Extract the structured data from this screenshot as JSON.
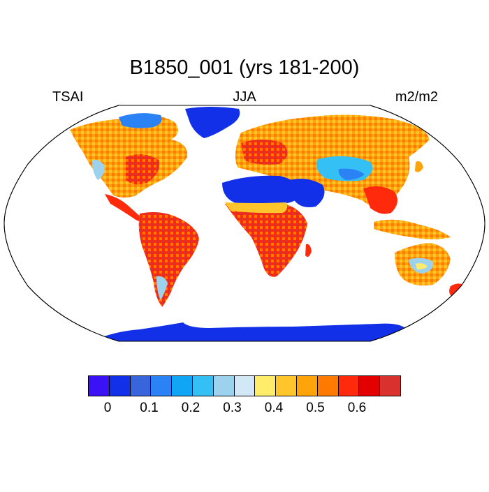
{
  "title": "B1850_001 (yrs 181-200)",
  "left_label": "TSAI",
  "center_label": "JJA",
  "right_label": "m2/m2",
  "colors": {
    "ocean": "#ffffff",
    "frame": "#000000"
  },
  "colorbar": {
    "colors": [
      "#3a12f5",
      "#1230e8",
      "#3865dc",
      "#2a82f5",
      "#10a5f5",
      "#35c0f5",
      "#9dd2ef",
      "#d2e8f7",
      "#ffec6a",
      "#ffc52a",
      "#ffa30a",
      "#ff7a00",
      "#ff2a0c",
      "#e40000",
      "#d8312e"
    ],
    "tick_labels": [
      "0",
      "0.1",
      "0.2",
      "0.3",
      "0.4",
      "0.5",
      "0.6"
    ]
  },
  "chart_data": {
    "type": "heatmap",
    "projection": "Robinson",
    "variable": "TSAI",
    "season": "JJA",
    "units": "m2/m2",
    "regions": [
      {
        "name": "Greenland",
        "value": 0.02
      },
      {
        "name": "Antarctica",
        "value": 0.01
      },
      {
        "name": "Sahara",
        "value": 0.03
      },
      {
        "name": "Arabia",
        "value": 0.05
      },
      {
        "name": "Central Asia",
        "value": 0.22
      },
      {
        "name": "Boreal North America",
        "value": 0.5
      },
      {
        "name": "Eastern North America",
        "value": 0.6
      },
      {
        "name": "Amazon",
        "value": 0.62
      },
      {
        "name": "Central Africa",
        "value": 0.62
      },
      {
        "name": "Europe",
        "value": 0.55
      },
      {
        "name": "Siberia",
        "value": 0.5
      },
      {
        "name": "Southeast Asia",
        "value": 0.6
      },
      {
        "name": "Australia interior",
        "value": 0.3
      },
      {
        "name": "Australia coast",
        "value": 0.58
      }
    ]
  }
}
